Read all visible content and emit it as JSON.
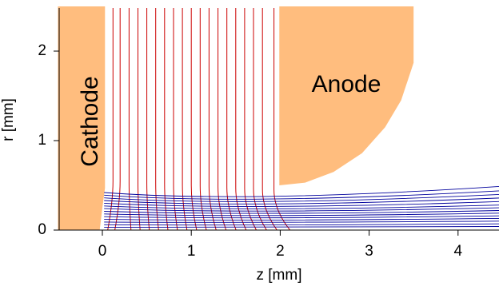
{
  "chart_data": {
    "type": "line",
    "title": "",
    "xlabel": "z [mm]",
    "ylabel": "r [mm]",
    "xlim": [
      -0.5,
      4.5
    ],
    "ylim": [
      0,
      2.5
    ],
    "x_ticks": [
      0,
      1,
      2,
      3,
      4
    ],
    "y_ticks": [
      0,
      1,
      2
    ],
    "grid": false,
    "regions": [
      {
        "label": "Cathode",
        "color": "#FFBD7E"
      },
      {
        "label": "Anode",
        "color": "#FFBD7E"
      }
    ],
    "cathode_shape": {
      "points": [
        [
          -0.5,
          0
        ],
        [
          -0.5,
          2.5
        ],
        [
          0.03,
          2.5
        ],
        [
          0.03,
          0.47
        ],
        [
          0.0,
          0.25
        ],
        [
          -0.03,
          0
        ]
      ]
    },
    "anode_shape": {
      "points": [
        [
          1.99,
          2.5
        ],
        [
          3.5,
          2.5
        ],
        [
          3.5,
          1.87
        ],
        [
          3.36,
          1.45
        ],
        [
          3.18,
          1.15
        ],
        [
          2.92,
          0.86
        ],
        [
          2.6,
          0.65
        ],
        [
          2.28,
          0.53
        ],
        [
          1.99,
          0.5
        ]
      ]
    },
    "equipotential_color": "#CC0000",
    "equipotential_lines": {
      "z_positions": [
        0.12,
        0.2,
        0.3,
        0.4,
        0.5,
        0.6,
        0.7,
        0.8,
        0.9,
        1.0,
        1.1,
        1.2,
        1.3,
        1.4,
        1.5,
        1.6,
        1.7,
        1.8,
        1.93
      ],
      "r_top": 2.5,
      "r_bottom": 0.0
    },
    "trajectory_color": "#00009C",
    "trajectories": {
      "start_r": [
        0.42,
        0.39,
        0.36,
        0.33,
        0.3,
        0.27,
        0.24,
        0.21,
        0.18,
        0.15,
        0.12,
        0.09,
        0.06,
        0.03
      ],
      "end_r": [
        0.49,
        0.44,
        0.4,
        0.36,
        0.32,
        0.28,
        0.25,
        0.22,
        0.19,
        0.16,
        0.13,
        0.1,
        0.07,
        0.04
      ],
      "waist_r": [
        0.3,
        0.28,
        0.26,
        0.24,
        0.22,
        0.2,
        0.18,
        0.16,
        0.14,
        0.12,
        0.1,
        0.08,
        0.05,
        0.03
      ],
      "start_z": 0.02,
      "end_z": 4.5
    }
  }
}
